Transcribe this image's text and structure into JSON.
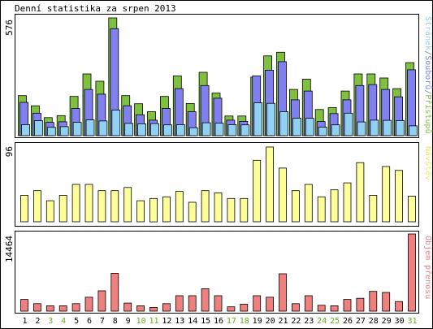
{
  "title": "Denní statistika za srpen 2013",
  "colors": {
    "hits": "#80c040",
    "files": "#8080f0",
    "pages": "#90d0f0",
    "visits": "#ffff99",
    "kbytes": "#f08080",
    "weekday": "#000000",
    "weekend": "#66aa22"
  },
  "chart_data": [
    {
      "type": "bar",
      "panel": "hits-files-pages",
      "title": "Denní statistika za srpen 2013",
      "ylabel": "576",
      "ymax": 576,
      "categories": [
        "1",
        "2",
        "3",
        "4",
        "5",
        "6",
        "7",
        "8",
        "9",
        "10",
        "11",
        "12",
        "13",
        "14",
        "15",
        "16",
        "17",
        "18",
        "19",
        "20",
        "21",
        "22",
        "23",
        "24",
        "25",
        "26",
        "27",
        "28",
        "29",
        "30",
        "31"
      ],
      "weekend": [
        false,
        false,
        true,
        true,
        false,
        false,
        false,
        false,
        false,
        true,
        true,
        false,
        false,
        false,
        false,
        false,
        true,
        true,
        false,
        false,
        false,
        false,
        false,
        true,
        true,
        false,
        false,
        false,
        false,
        false,
        true
      ],
      "legend": {
        "text": "Stránek/Souborů/Přístupů",
        "parts": [
          "Stránek",
          "/",
          "Souborů",
          "/",
          "Přístupů"
        ]
      },
      "series": [
        {
          "name": "Přístupů",
          "color": "#80c040",
          "values": [
            196,
            146,
            88,
            98,
            192,
            302,
            266,
            576,
            196,
            156,
            117,
            192,
            292,
            157,
            310,
            208,
            96,
            96,
            286,
            390,
            408,
            226,
            276,
            128,
            137,
            218,
            302,
            302,
            282,
            230,
            357
          ]
        },
        {
          "name": "Souborů",
          "color": "#8080f0",
          "values": [
            163,
            110,
            65,
            68,
            133,
            226,
            203,
            523,
            146,
            102,
            76,
            133,
            230,
            117,
            245,
            183,
            76,
            70,
            292,
            320,
            362,
            175,
            218,
            69,
            108,
            175,
            245,
            250,
            226,
            190,
            322
          ]
        },
        {
          "name": "Stránek",
          "color": "#90d0f0",
          "values": [
            54,
            73,
            41,
            44,
            65,
            77,
            72,
            125,
            60,
            58,
            59,
            53,
            54,
            39,
            63,
            61,
            54,
            53,
            161,
            158,
            117,
            86,
            85,
            42,
            53,
            110,
            67,
            76,
            75,
            74,
            48
          ]
        }
      ]
    },
    {
      "type": "bar",
      "panel": "visits",
      "ylabel": "96",
      "ymax": 96,
      "legend": {
        "text": "Návštěv"
      },
      "series": [
        {
          "name": "Návštěv",
          "color": "#ffff99",
          "values": [
            34,
            40,
            27,
            34,
            48,
            48,
            40,
            40,
            44,
            27,
            30,
            32,
            39,
            25,
            40,
            37,
            30,
            30,
            79,
            96,
            69,
            40,
            48,
            32,
            41,
            50,
            76,
            34,
            71,
            66,
            33
          ]
        }
      ]
    },
    {
      "type": "bar",
      "panel": "kbytes",
      "ylabel": "14464",
      "ymax": 14464,
      "legend": {
        "text": "Objem přenosu"
      },
      "series": [
        {
          "name": "Objem přenosu",
          "color": "#f08080",
          "values": [
            2200,
            1400,
            1000,
            1000,
            1400,
            2600,
            3800,
            7100,
            1500,
            1000,
            700,
            1400,
            2900,
            2900,
            4200,
            2900,
            800,
            1300,
            2900,
            2600,
            7000,
            1400,
            2900,
            1100,
            1000,
            2200,
            2400,
            3700,
            3500,
            1800,
            14464
          ]
        }
      ]
    }
  ]
}
